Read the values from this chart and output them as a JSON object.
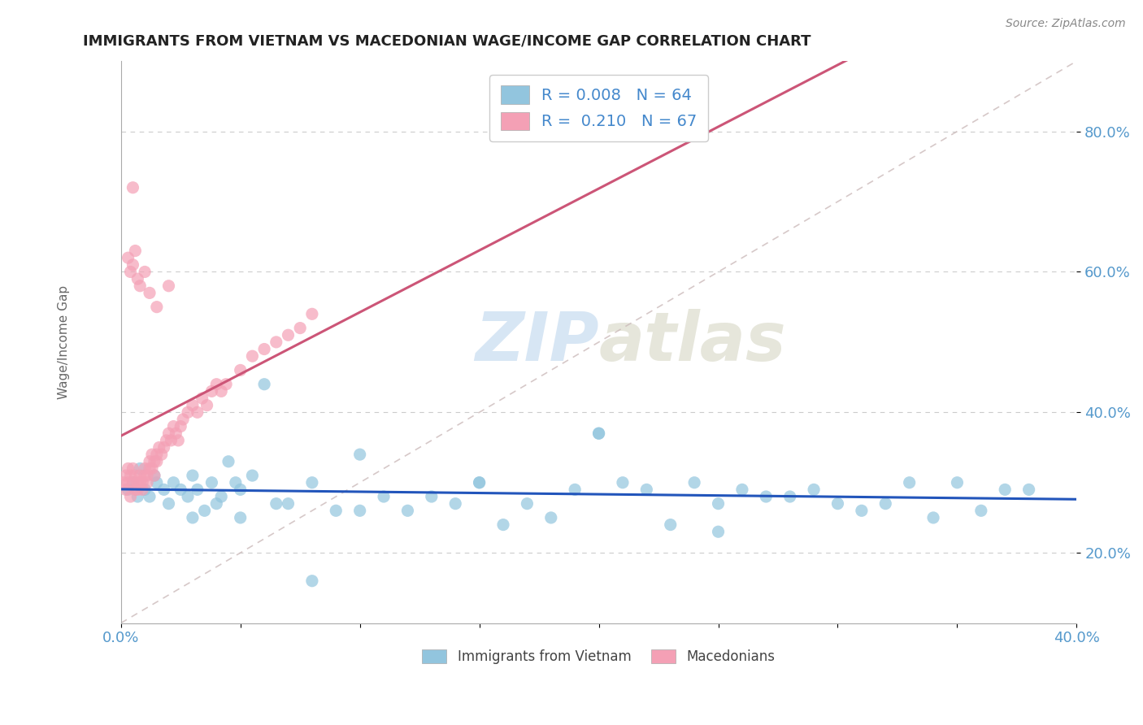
{
  "title": "IMMIGRANTS FROM VIETNAM VS MACEDONIAN WAGE/INCOME GAP CORRELATION CHART",
  "source": "Source: ZipAtlas.com",
  "ylabel": "Wage/Income Gap",
  "legend_blue_label": "R = 0.008   N = 64",
  "legend_pink_label": "R =  0.210   N = 67",
  "legend_x_label": "Immigrants from Vietnam",
  "legend_mac_label": "Macedonians",
  "blue_color": "#92C5DE",
  "pink_color": "#F4A0B5",
  "blue_line_color": "#2255BB",
  "pink_line_color": "#CC5577",
  "diag_line_color": "#CCBBBB",
  "watermark": "ZIPatlas",
  "xlim": [
    0.0,
    0.4
  ],
  "ylim": [
    0.1,
    0.9
  ],
  "ytick_vals": [
    0.2,
    0.4,
    0.6,
    0.8
  ],
  "ytick_labels": [
    "20.0%",
    "40.0%",
    "60.0%",
    "80.0%"
  ],
  "blue_x": [
    0.003,
    0.005,
    0.007,
    0.008,
    0.01,
    0.012,
    0.014,
    0.015,
    0.018,
    0.02,
    0.022,
    0.025,
    0.028,
    0.03,
    0.032,
    0.035,
    0.038,
    0.04,
    0.042,
    0.045,
    0.048,
    0.05,
    0.055,
    0.06,
    0.065,
    0.07,
    0.08,
    0.09,
    0.1,
    0.11,
    0.12,
    0.13,
    0.14,
    0.15,
    0.16,
    0.17,
    0.18,
    0.19,
    0.2,
    0.21,
    0.22,
    0.23,
    0.24,
    0.25,
    0.26,
    0.27,
    0.28,
    0.29,
    0.3,
    0.31,
    0.32,
    0.33,
    0.34,
    0.35,
    0.36,
    0.37,
    0.38,
    0.25,
    0.2,
    0.15,
    0.1,
    0.05,
    0.08,
    0.03
  ],
  "blue_y": [
    0.29,
    0.3,
    0.28,
    0.32,
    0.29,
    0.28,
    0.31,
    0.3,
    0.29,
    0.27,
    0.3,
    0.29,
    0.28,
    0.31,
    0.29,
    0.26,
    0.3,
    0.27,
    0.28,
    0.33,
    0.3,
    0.29,
    0.31,
    0.44,
    0.27,
    0.27,
    0.3,
    0.26,
    0.34,
    0.28,
    0.26,
    0.28,
    0.27,
    0.3,
    0.24,
    0.27,
    0.25,
    0.29,
    0.37,
    0.3,
    0.29,
    0.24,
    0.3,
    0.27,
    0.29,
    0.28,
    0.28,
    0.29,
    0.27,
    0.26,
    0.27,
    0.3,
    0.25,
    0.3,
    0.26,
    0.29,
    0.29,
    0.23,
    0.37,
    0.3,
    0.26,
    0.25,
    0.16,
    0.25
  ],
  "pink_x": [
    0.001,
    0.002,
    0.002,
    0.003,
    0.003,
    0.004,
    0.004,
    0.005,
    0.005,
    0.006,
    0.006,
    0.007,
    0.007,
    0.008,
    0.008,
    0.009,
    0.009,
    0.01,
    0.01,
    0.011,
    0.011,
    0.012,
    0.012,
    0.013,
    0.013,
    0.014,
    0.014,
    0.015,
    0.015,
    0.016,
    0.017,
    0.018,
    0.019,
    0.02,
    0.021,
    0.022,
    0.023,
    0.024,
    0.025,
    0.026,
    0.028,
    0.03,
    0.032,
    0.034,
    0.036,
    0.038,
    0.04,
    0.042,
    0.044,
    0.05,
    0.055,
    0.06,
    0.065,
    0.07,
    0.075,
    0.08,
    0.003,
    0.004,
    0.005,
    0.006,
    0.007,
    0.008,
    0.01,
    0.012,
    0.015,
    0.02,
    0.005
  ],
  "pink_y": [
    0.3,
    0.29,
    0.31,
    0.32,
    0.3,
    0.31,
    0.28,
    0.32,
    0.3,
    0.29,
    0.31,
    0.3,
    0.29,
    0.31,
    0.3,
    0.3,
    0.29,
    0.32,
    0.31,
    0.3,
    0.31,
    0.32,
    0.33,
    0.34,
    0.32,
    0.33,
    0.31,
    0.34,
    0.33,
    0.35,
    0.34,
    0.35,
    0.36,
    0.37,
    0.36,
    0.38,
    0.37,
    0.36,
    0.38,
    0.39,
    0.4,
    0.41,
    0.4,
    0.42,
    0.41,
    0.43,
    0.44,
    0.43,
    0.44,
    0.46,
    0.48,
    0.49,
    0.5,
    0.51,
    0.52,
    0.54,
    0.62,
    0.6,
    0.61,
    0.63,
    0.59,
    0.58,
    0.6,
    0.57,
    0.55,
    0.58,
    0.72
  ]
}
